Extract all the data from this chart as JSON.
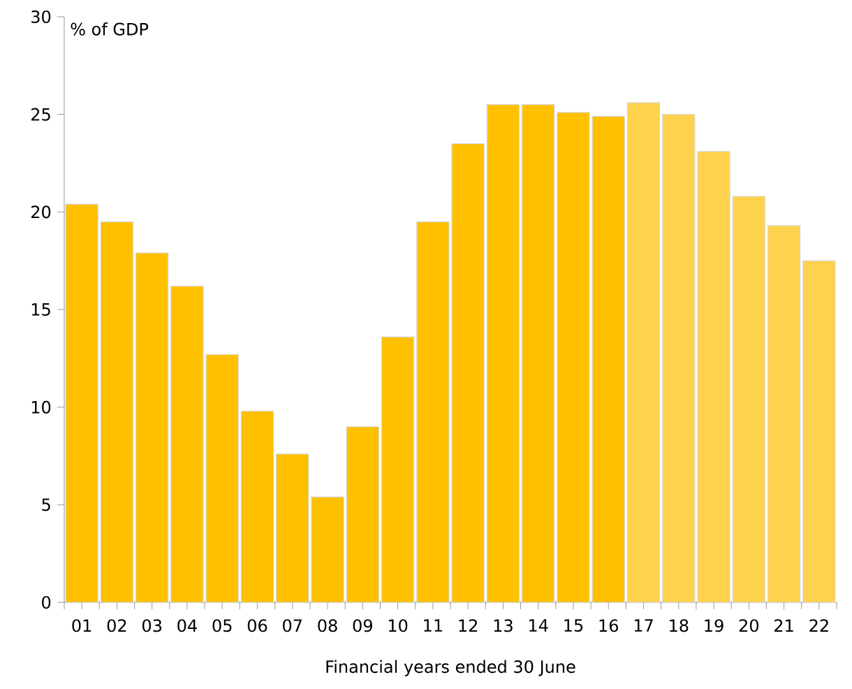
{
  "chart_data": {
    "type": "bar",
    "ylabel": "% of GDP",
    "xlabel": "Financial years ended 30 June",
    "categories": [
      "01",
      "02",
      "03",
      "04",
      "05",
      "06",
      "07",
      "08",
      "09",
      "10",
      "11",
      "12",
      "13",
      "14",
      "15",
      "16",
      "17",
      "18",
      "19",
      "20",
      "21",
      "22"
    ],
    "values": [
      20.4,
      19.5,
      17.9,
      16.2,
      12.7,
      9.8,
      7.6,
      5.4,
      9.0,
      13.6,
      19.5,
      23.5,
      25.5,
      25.5,
      25.1,
      24.9,
      25.6,
      25.0,
      23.1,
      20.8,
      19.3,
      17.5
    ],
    "colors": [
      "#ffc000",
      "#ffc000",
      "#ffc000",
      "#ffc000",
      "#ffc000",
      "#ffc000",
      "#ffc000",
      "#ffc000",
      "#ffc000",
      "#ffc000",
      "#ffc000",
      "#ffc000",
      "#ffc000",
      "#ffc000",
      "#ffc000",
      "#ffc000",
      "#ffd24d",
      "#ffd24d",
      "#ffd24d",
      "#ffd24d",
      "#ffd24d",
      "#ffd24d"
    ],
    "ylim": [
      0,
      30
    ],
    "yticks": [
      0,
      5,
      10,
      15,
      20,
      25,
      30
    ],
    "grid": false
  }
}
